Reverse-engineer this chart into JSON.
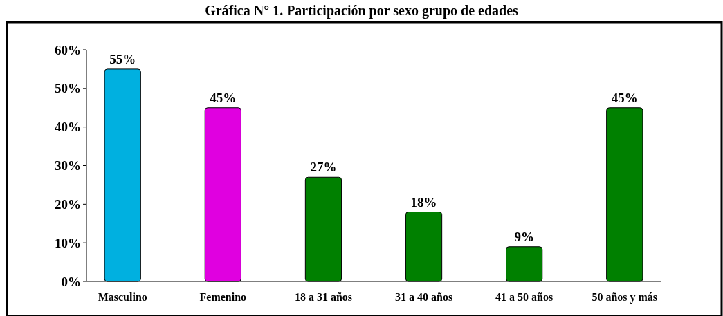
{
  "chart_data": {
    "type": "bar",
    "title": "Gráfica N° 1. Participación por sexo grupo de edades",
    "categories": [
      "Masculino",
      "Femenino",
      "18 a 31 años",
      "31 a 40 años",
      "41 a 50 años",
      "50 años y más"
    ],
    "values": [
      55,
      45,
      27,
      18,
      9,
      45
    ],
    "colors": [
      "#00b0e0",
      "#e000e0",
      "#008000",
      "#008000",
      "#008000",
      "#008000"
    ],
    "value_labels": [
      "55%",
      "45%",
      "27%",
      "18%",
      "9%",
      "45%"
    ],
    "ylim": [
      0,
      60
    ],
    "yticks": [
      {
        "value": 0,
        "label": "0%"
      },
      {
        "value": 10,
        "label": "10%"
      },
      {
        "value": 20,
        "label": "20%"
      },
      {
        "value": 30,
        "label": "30%"
      },
      {
        "value": 40,
        "label": "40%"
      },
      {
        "value": 50,
        "label": "50%"
      },
      {
        "value": 60,
        "label": "60%"
      }
    ],
    "grid": false
  }
}
